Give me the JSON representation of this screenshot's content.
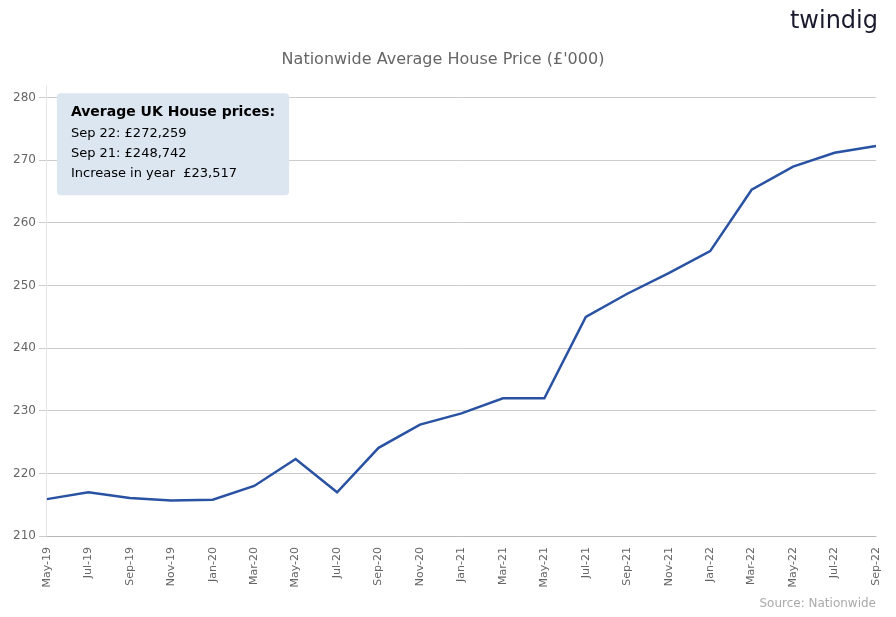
{
  "chart_data": {
    "type": "line",
    "title": "Nationwide Average House Price (£'000)",
    "categories": [
      "May-19",
      "Jul-19",
      "Sep-19",
      "Nov-19",
      "Jan-20",
      "Mar-20",
      "May-20",
      "Jul-20",
      "Sep-20",
      "Nov-20",
      "Jan-21",
      "Mar-21",
      "May-21",
      "Jul-21",
      "Sep-21",
      "Nov-21",
      "Jan-22",
      "Mar-22",
      "May-22",
      "Jul-22",
      "Sep-22"
    ],
    "values": [
      215.9,
      217.0,
      216.1,
      215.7,
      215.8,
      218.0,
      222.3,
      217.0,
      224.1,
      227.8,
      229.6,
      232.0,
      232.0,
      245.0,
      248.7,
      252.0,
      255.5,
      265.3,
      269.0,
      271.2,
      272.3
    ],
    "color": "#2952a3",
    "ylim": [
      210,
      282
    ],
    "yticks": [
      210,
      220,
      230,
      240,
      250,
      260,
      270,
      280
    ],
    "grid": true,
    "annotation_title": "Average UK House prices:",
    "annotation_lines": [
      "Sep 22: £272,259",
      "Sep 21: £248,742",
      "Increase in year  £23,517"
    ],
    "source": "Source: Nationwide",
    "logo": "twindig"
  }
}
